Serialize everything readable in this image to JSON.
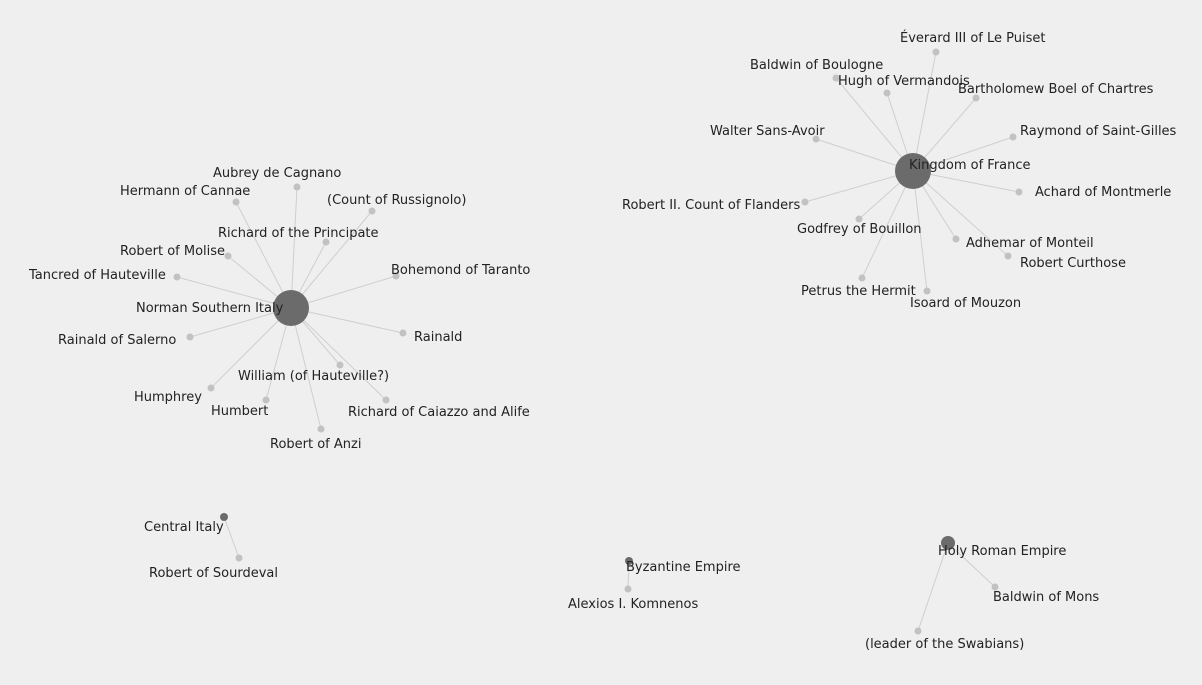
{
  "graph": {
    "clusters": [
      {
        "hub": "Norman Southern Italy",
        "members": [
          "Aubrey de Cagnano",
          "Hermann of Cannae",
          "(Count of Russignolo)",
          "Richard of the Principate",
          "Robert of Molise",
          "Tancred of Hauteville",
          "Bohemond of Taranto",
          "Rainald of Salerno",
          "Rainald",
          "William (of Hauteville?)",
          "Humphrey",
          "Humbert",
          "Richard of Caiazzo and Alife",
          "Robert of Anzi"
        ]
      },
      {
        "hub": "Kingdom of France",
        "members": [
          "Éverard III of Le Puiset",
          "Baldwin of Boulogne",
          "Hugh of Vermandois",
          "Bartholomew Boel of Chartres",
          "Walter Sans-Avoir",
          "Raymond of Saint-Gilles",
          "Achard of Montmerle",
          "Robert II. Count of Flanders",
          "Godfrey of Bouillon",
          "Adhemar of Monteil",
          "Robert Curthose",
          "Petrus the Hermit",
          "Isoard of Mouzon"
        ]
      },
      {
        "hub": "Central Italy",
        "members": [
          "Robert of Sourdeval"
        ]
      },
      {
        "hub": "Byzantine Empire",
        "members": [
          "Alexios I. Komnenos"
        ]
      },
      {
        "hub": "Holy Roman Empire",
        "members": [
          "Baldwin of Mons",
          "(leader of the Swabians)"
        ]
      }
    ]
  }
}
